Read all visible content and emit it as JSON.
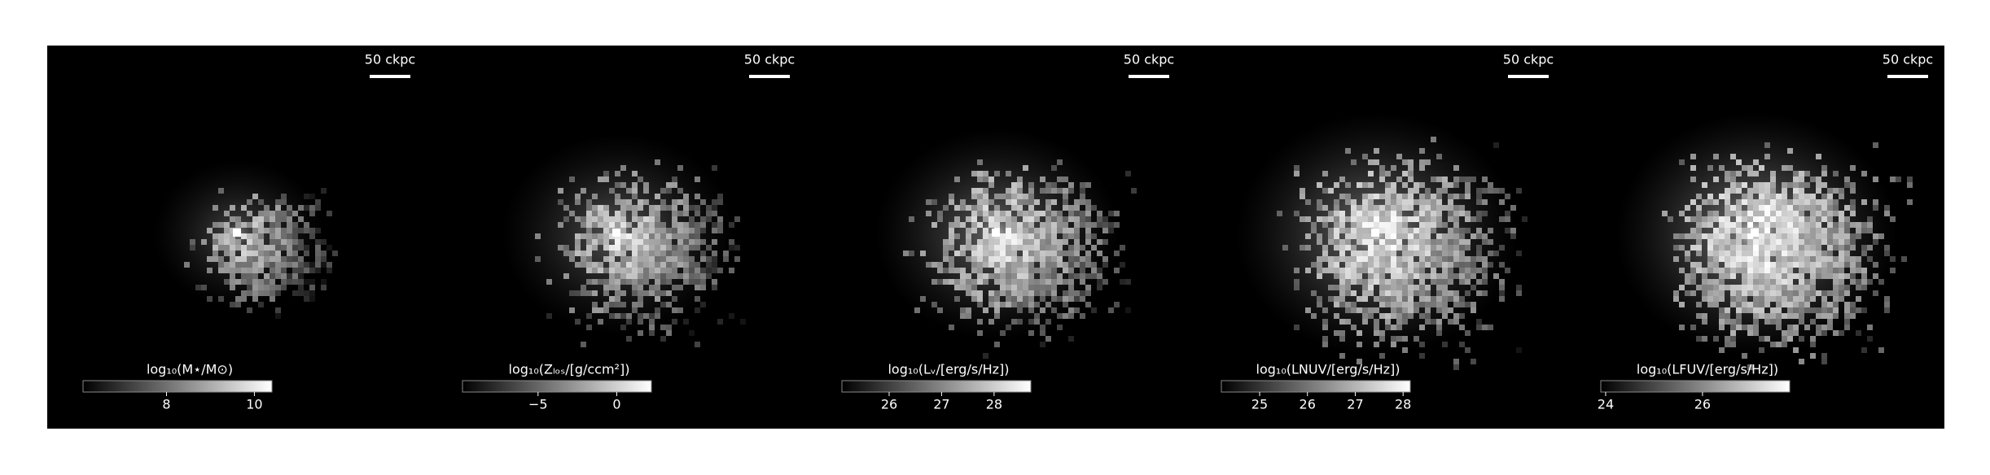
{
  "chart_data": [
    {
      "type": "image",
      "scale_label": "50 ckpc",
      "colorbar_label": "log₁₀(M⋆/M⊙)",
      "clim": [
        6.1,
        10.4
      ],
      "cticks": [
        8,
        10
      ]
    },
    {
      "type": "image",
      "scale_label": "50 ckpc",
      "colorbar_label": "log₁₀(Zₗₒₛ/[g/ccm²])",
      "clim": [
        -9.8,
        2.2
      ],
      "cticks": [
        {
          "value": -5,
          "label": "−5"
        },
        0
      ]
    },
    {
      "type": "image",
      "scale_label": "50 ckpc",
      "colorbar_label": "log₁₀(Lᵥ/[erg/s/Hz])",
      "clim": [
        25.1,
        28.7
      ],
      "cticks": [
        26,
        27,
        28
      ]
    },
    {
      "type": "image",
      "scale_label": "50 ckpc",
      "colorbar_label": "log₁₀(LNUV/[erg/s/Hz])",
      "clim": [
        24.2,
        28.15
      ],
      "cticks": [
        25,
        26,
        27,
        28
      ]
    },
    {
      "type": "image",
      "scale_label": "50 ckpc",
      "colorbar_label": "log₁₀(LFUV/[erg/s/Hz])",
      "clim": [
        23.9,
        27.8
      ],
      "cticks": [
        24,
        26
      ]
    }
  ]
}
